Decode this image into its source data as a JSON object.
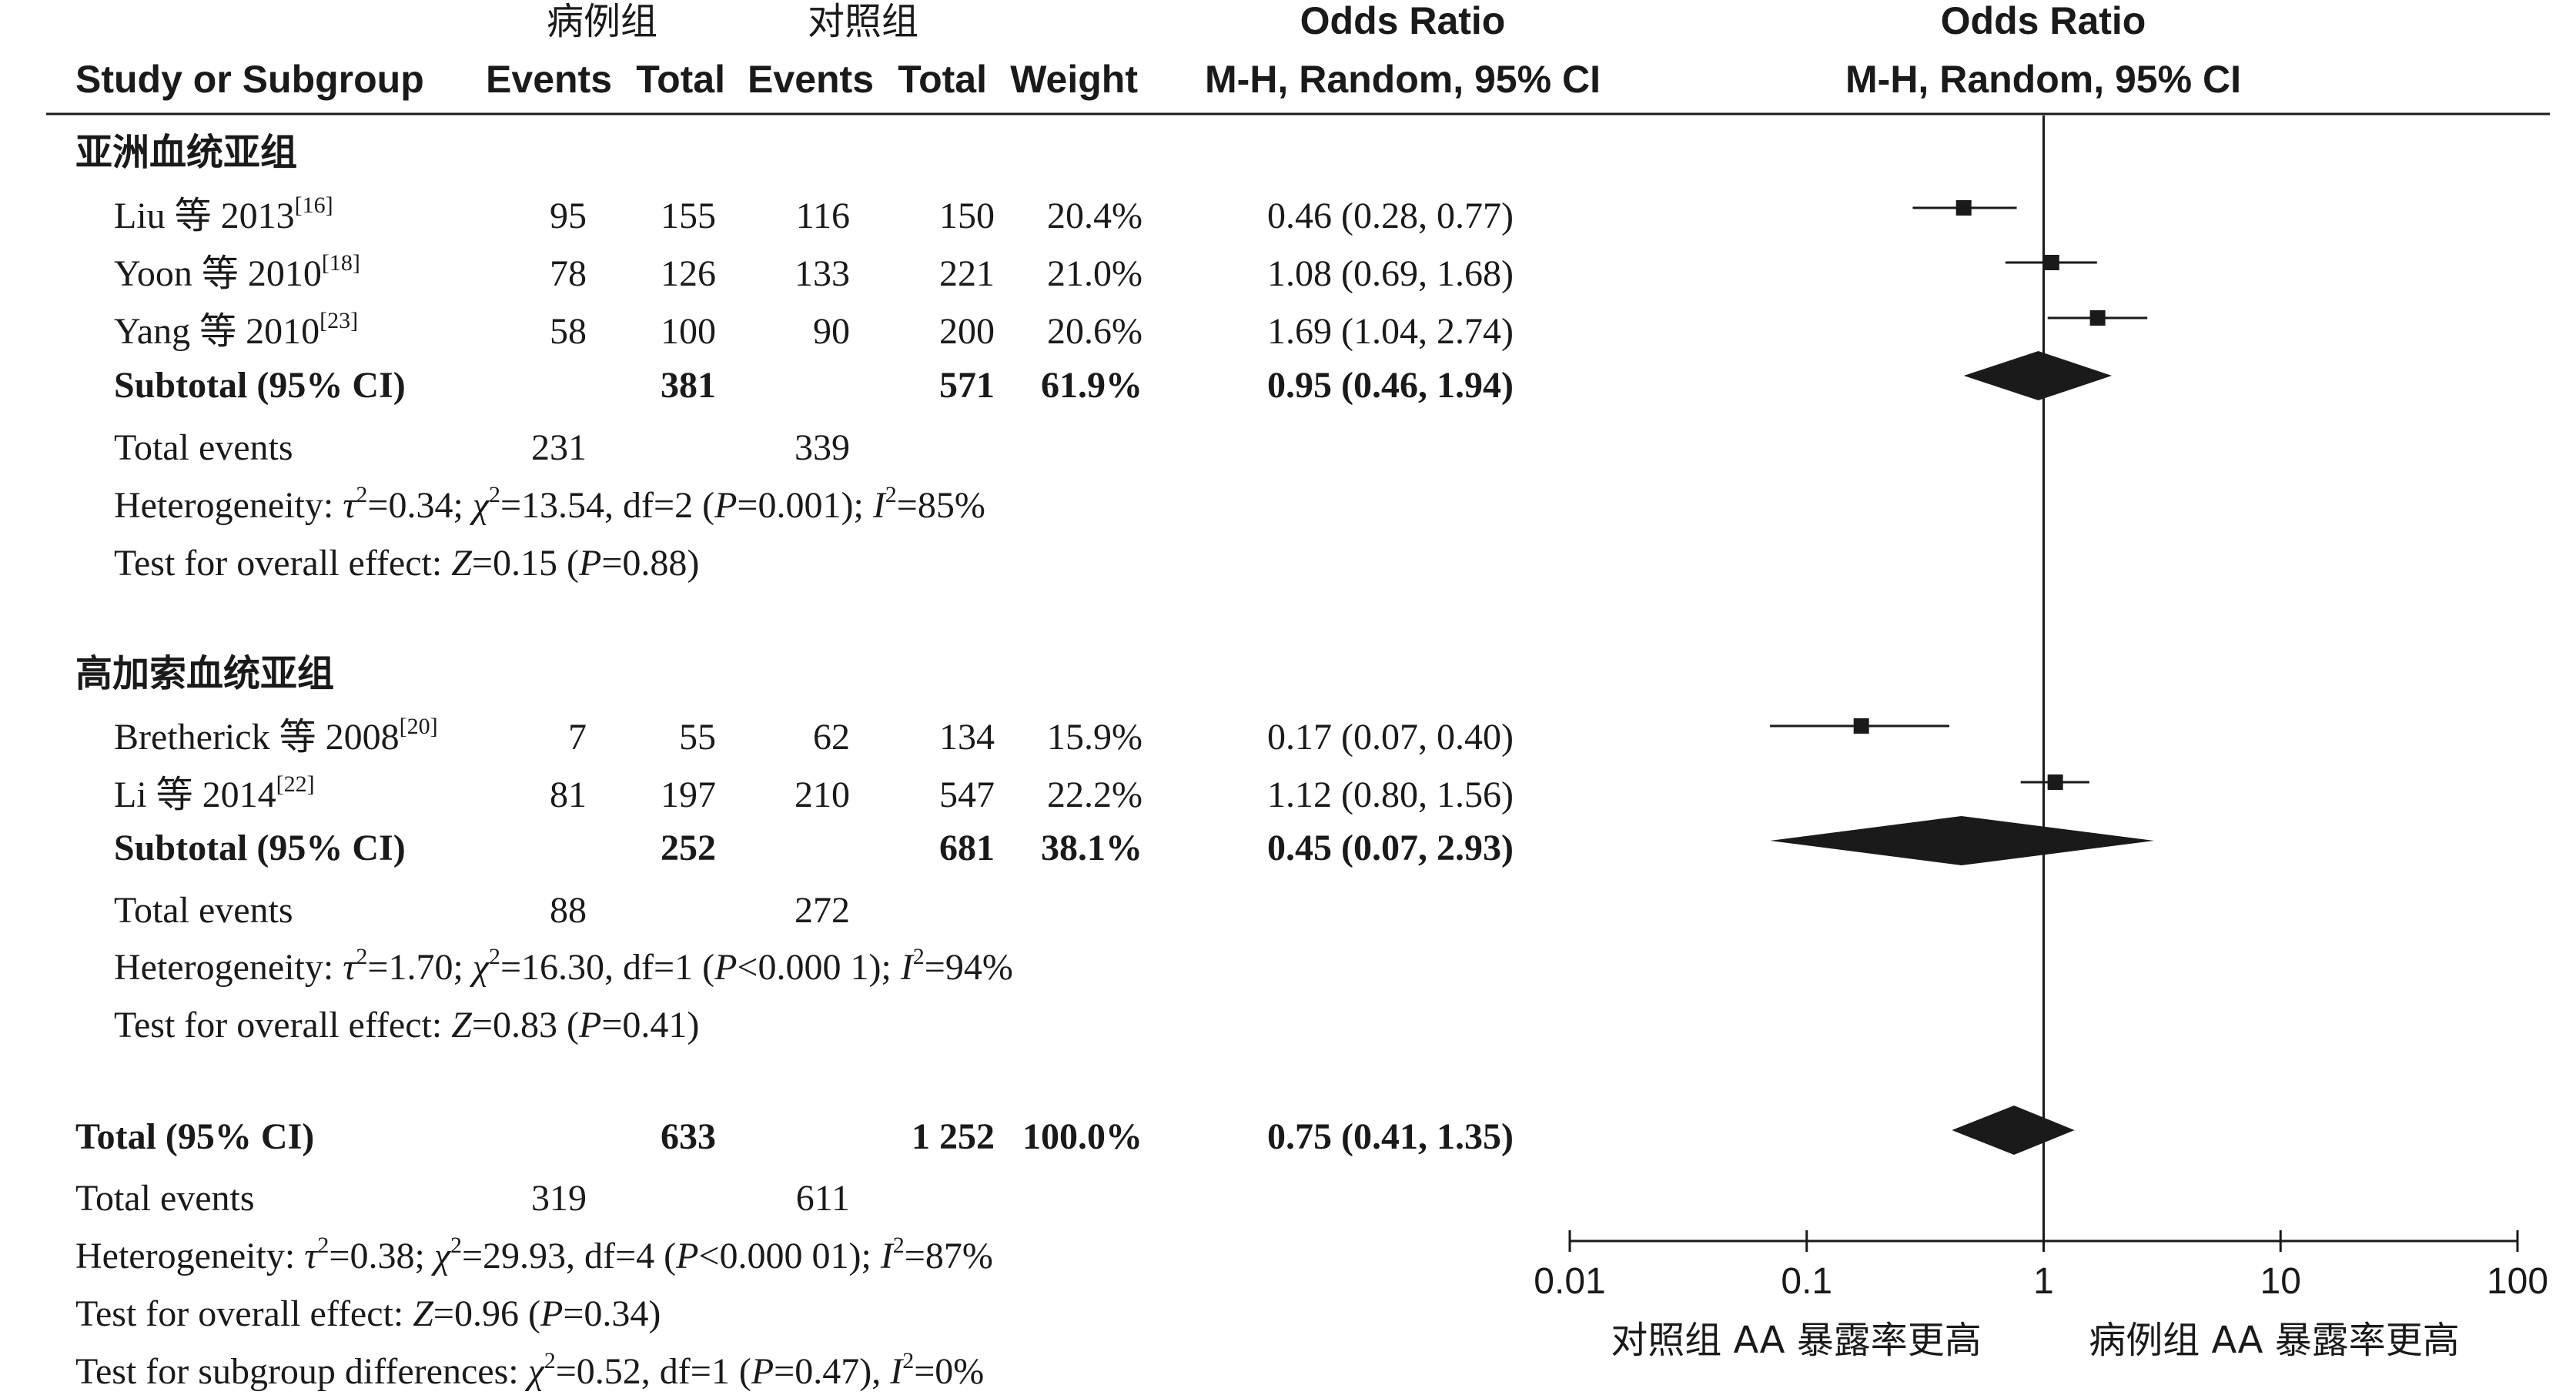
{
  "header": {
    "group_case": "病例组",
    "group_control": "对照组",
    "study_col": "Study or Subgroup",
    "events1": "Events",
    "total1": "Total",
    "events2": "Events",
    "total2": "Total",
    "weight": "Weight",
    "or_title": "Odds Ratio",
    "or_method": "M-H, Random, 95% CI",
    "plot_title": "Odds Ratio",
    "plot_method": "M-H, Random, 95% CI"
  },
  "subgroups": [
    {
      "title": "亚洲血统亚组",
      "studies": [
        {
          "author": "Liu 等 2013",
          "ref": "[16]",
          "e1": "95",
          "t1": "155",
          "e2": "116",
          "t2": "150",
          "weight": "20.4%",
          "ci_text": "0.46 (0.28, 0.77)"
        },
        {
          "author": "Yoon 等 2010",
          "ref": "[18]",
          "e1": "78",
          "t1": "126",
          "e2": "133",
          "t2": "221",
          "weight": "21.0%",
          "ci_text": "1.08 (0.69, 1.68)"
        },
        {
          "author": "Yang 等 2010",
          "ref": "[23]",
          "e1": "58",
          "t1": "100",
          "e2": "90",
          "t2": "200",
          "weight": "20.6%",
          "ci_text": "1.69 (1.04, 2.74)"
        }
      ],
      "subtotal": {
        "label": "Subtotal (95% CI)",
        "t1": "381",
        "t2": "571",
        "weight": "61.9%",
        "ci_text": "0.95 (0.46, 1.94)"
      },
      "total_events": {
        "label": "Total events",
        "e1": "231",
        "e2": "339"
      },
      "heterogeneity": {
        "prefix": "Heterogeneity: ",
        "tau2": "0.34",
        "chi2": "13.54",
        "df": "2",
        "p": "=0.001",
        "i2": "85%"
      },
      "overall": {
        "prefix": "Test for overall effect: ",
        "z": "0.15",
        "p": "=0.88"
      }
    },
    {
      "title": "高加索血统亚组",
      "studies": [
        {
          "author": "Bretherick 等 2008",
          "ref": "[20]",
          "e1": "7",
          "t1": "55",
          "e2": "62",
          "t2": "134",
          "weight": "15.9%",
          "ci_text": "0.17 (0.07, 0.40)"
        },
        {
          "author": "Li 等 2014",
          "ref": "[22]",
          "e1": "81",
          "t1": "197",
          "e2": "210",
          "t2": "547",
          "weight": "22.2%",
          "ci_text": "1.12 (0.80, 1.56)"
        }
      ],
      "subtotal": {
        "label": "Subtotal (95% CI)",
        "t1": "252",
        "t2": "681",
        "weight": "38.1%",
        "ci_text": "0.45 (0.07, 2.93)"
      },
      "total_events": {
        "label": "Total events",
        "e1": "88",
        "e2": "272"
      },
      "heterogeneity": {
        "prefix": "Heterogeneity: ",
        "tau2": "1.70",
        "chi2": "16.30",
        "df": "1",
        "p": "<0.000 1",
        "i2": "94%"
      },
      "overall": {
        "prefix": "Test for overall effect: ",
        "z": "0.83",
        "p": "=0.41"
      }
    }
  ],
  "overall_total": {
    "label": "Total (95% CI)",
    "t1": "633",
    "t2": "1 252",
    "weight": "100.0%",
    "ci_text": "0.75 (0.41, 1.35)",
    "total_events": {
      "label": "Total events",
      "e1": "319",
      "e2": "611"
    },
    "heterogeneity": {
      "prefix": "Heterogeneity: ",
      "tau2": "0.38",
      "chi2": "29.93",
      "df": "4",
      "p": "<0.000 01",
      "i2": "87%"
    },
    "overall": {
      "prefix": "Test for overall effect: ",
      "z": "0.96",
      "p": "=0.34"
    },
    "subgroup_diff": {
      "prefix": "Test for subgroup differences: ",
      "chi2": "0.52",
      "df": "1",
      "p": "=0.47",
      "i2": "0%"
    }
  },
  "chart_data": {
    "type": "forest",
    "x_scale": "log",
    "xlim": [
      0.01,
      100
    ],
    "ticks": [
      "0.01",
      "0.1",
      "1",
      "10",
      "100"
    ],
    "tick_values": [
      0.01,
      0.1,
      1,
      10,
      100
    ],
    "null_line": 1,
    "xlabel_left": "对照组 AA 暴露率更高",
    "xlabel_right": "病例组 AA 暴露率更高",
    "studies": [
      {
        "name": "Liu 等 2013",
        "or": 0.46,
        "lo": 0.28,
        "hi": 0.77,
        "weight": 20.4
      },
      {
        "name": "Yoon 等 2010",
        "or": 1.08,
        "lo": 0.69,
        "hi": 1.68,
        "weight": 21.0
      },
      {
        "name": "Yang 等 2010",
        "or": 1.69,
        "lo": 1.04,
        "hi": 2.74,
        "weight": 20.6
      },
      {
        "name": "Bretherick 等 2008",
        "or": 0.17,
        "lo": 0.07,
        "hi": 0.4,
        "weight": 15.9
      },
      {
        "name": "Li 等 2014",
        "or": 1.12,
        "lo": 0.8,
        "hi": 1.56,
        "weight": 22.2
      }
    ],
    "subtotals": [
      {
        "name": "亚洲血统亚组 Subtotal",
        "or": 0.95,
        "lo": 0.46,
        "hi": 1.94
      },
      {
        "name": "高加索血统亚组 Subtotal",
        "or": 0.45,
        "lo": 0.07,
        "hi": 2.93
      }
    ],
    "total": {
      "name": "Total",
      "or": 0.75,
      "lo": 0.41,
      "hi": 1.35
    },
    "colors": {
      "ink": "#1a1a1a"
    }
  }
}
